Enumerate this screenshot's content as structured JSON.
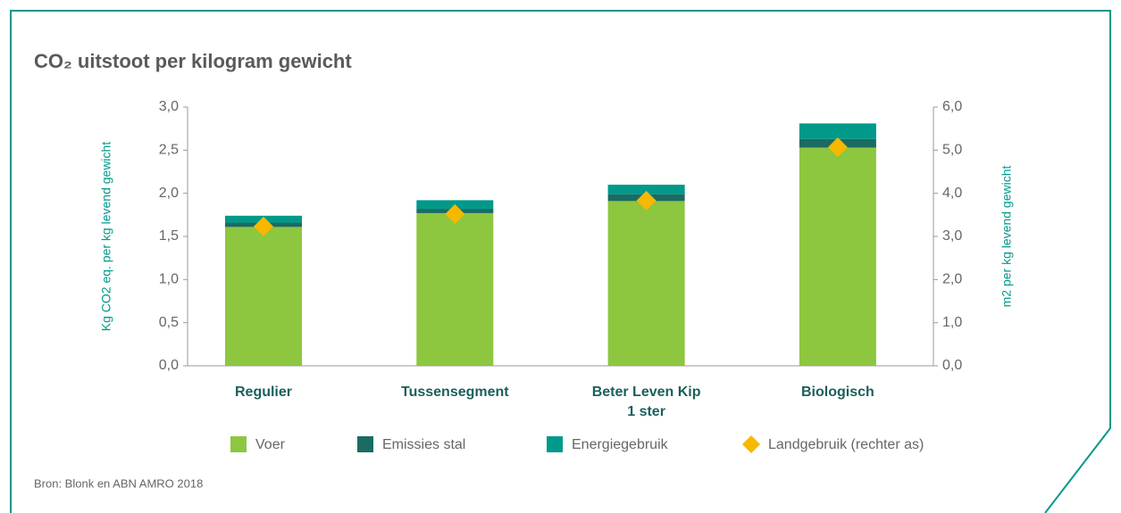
{
  "chart_data": {
    "type": "stacked_bar",
    "title": "CO₂ uitstoot per kilogram gewicht",
    "ylabel": "Kg CO2 eq. per kg levend gewicht",
    "y2label": "m2 per kg levend gewicht",
    "categories": [
      "Regulier",
      "Tussensegment",
      "Beter Leven Kip\n1 ster",
      "Biologisch"
    ],
    "series": [
      {
        "name": "Voer",
        "color": "#8dc63f",
        "values": [
          1.61,
          1.77,
          1.91,
          2.53
        ]
      },
      {
        "name": "Emissies stal",
        "color": "#1b6b63",
        "values": [
          0.05,
          0.05,
          0.08,
          0.1
        ]
      },
      {
        "name": "Energiegebruik",
        "color": "#00998a",
        "values": [
          0.08,
          0.1,
          0.11,
          0.18
        ]
      },
      {
        "name": "Landgebruik (rechter as)",
        "color": "#f6b800",
        "axis": "y2",
        "marker": "diamond",
        "values": [
          3.23,
          3.52,
          3.83,
          5.07
        ]
      }
    ],
    "ylim": [
      0,
      3
    ],
    "yticks": [
      {
        "value": 0,
        "label": "0,0"
      },
      {
        "value": 0.5,
        "label": "0,5"
      },
      {
        "value": 1,
        "label": "1,0"
      },
      {
        "value": 1.5,
        "label": "1,5"
      },
      {
        "value": 2,
        "label": "2,0"
      },
      {
        "value": 2.5,
        "label": "2,5"
      },
      {
        "value": 3,
        "label": "3,0"
      }
    ],
    "y2lim": [
      0,
      6
    ],
    "y2ticks": [
      {
        "value": 0,
        "label": "0,0"
      },
      {
        "value": 1,
        "label": "1,0"
      },
      {
        "value": 2,
        "label": "2,0"
      },
      {
        "value": 3,
        "label": "3,0"
      },
      {
        "value": 4,
        "label": "4,0"
      },
      {
        "value": 5,
        "label": "5,0"
      },
      {
        "value": 6,
        "label": "6,0"
      }
    ],
    "source": "Bron: Blonk en ABN AMRO 2018"
  }
}
